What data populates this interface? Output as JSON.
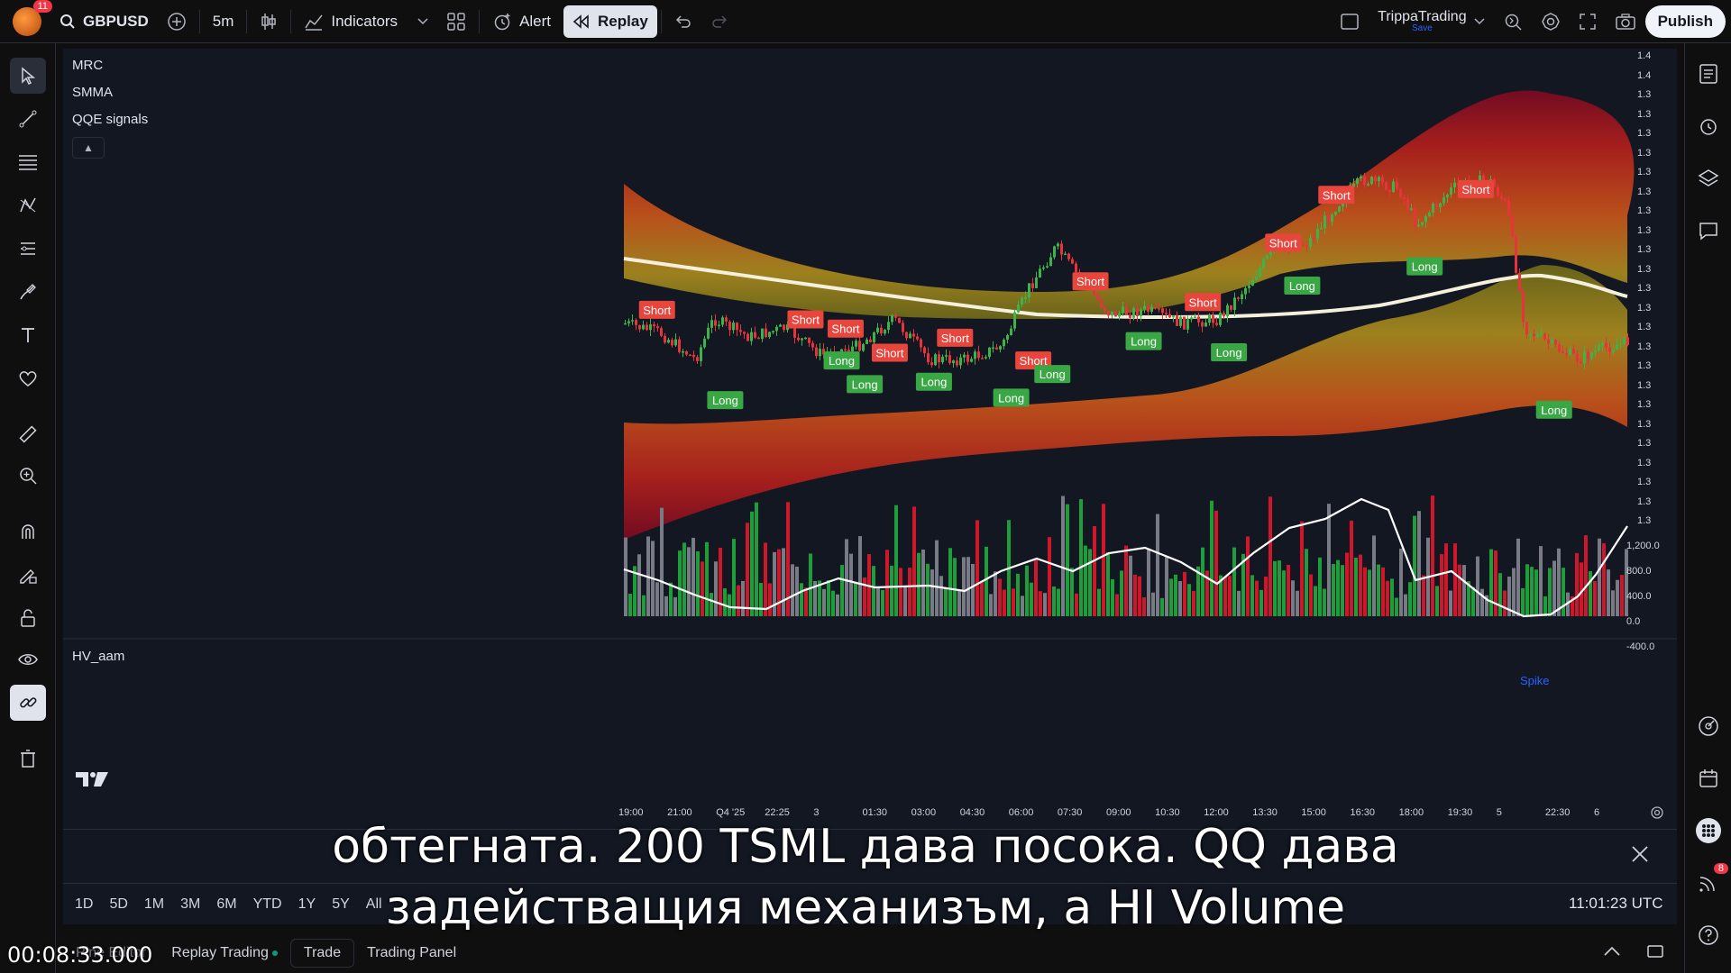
{
  "topbar": {
    "notification_count": "11",
    "symbol": "GBPUSD",
    "interval": "5m",
    "indicators_label": "Indicators",
    "alert_label": "Alert",
    "replay_label": "Replay",
    "user_name": "TrippaTrading",
    "user_status": "Save",
    "publish_label": "Publish"
  },
  "legends": {
    "mrc": "MRC",
    "smma": "SMMA",
    "qqe": "QQE signals",
    "volume": "HV_aam",
    "spike": "Spike"
  },
  "chart_data": {
    "type": "candlestick",
    "price_axis_labels": [
      "1.4",
      "1.4",
      "1.3",
      "1.3",
      "1.3",
      "1.3",
      "1.3",
      "1.3",
      "1.3",
      "1.3",
      "1.3",
      "1.3",
      "1.3",
      "1.3",
      "1.3",
      "1.3",
      "1.3",
      "1.3",
      "1.3",
      "1.3",
      "1.3",
      "1.3",
      "1.3",
      "1.3",
      "1.3"
    ],
    "volume_axis_labels": [
      "1,200.0",
      "800.0",
      "400.0",
      "0.0",
      "-400.0"
    ],
    "time_axis_labels": [
      "19:00",
      "21:00",
      "Q4 '25",
      "22:25",
      "3",
      "01:30",
      "03:00",
      "04:30",
      "06:00",
      "07:30",
      "09:00",
      "10:30",
      "12:00",
      "13:30",
      "15:00",
      "16:30",
      "18:00",
      "19:30",
      "5",
      "22:30",
      "6"
    ],
    "signals": [
      {
        "type": "Short",
        "x": 0.033,
        "y": 0.44
      },
      {
        "type": "Long",
        "x": 0.101,
        "y": 0.627
      },
      {
        "type": "Short",
        "x": 0.181,
        "y": 0.46
      },
      {
        "type": "Short",
        "x": 0.221,
        "y": 0.479
      },
      {
        "type": "Long",
        "x": 0.217,
        "y": 0.545
      },
      {
        "type": "Short",
        "x": 0.265,
        "y": 0.529
      },
      {
        "type": "Long",
        "x": 0.24,
        "y": 0.594
      },
      {
        "type": "Short",
        "x": 0.33,
        "y": 0.498
      },
      {
        "type": "Long",
        "x": 0.309,
        "y": 0.589
      },
      {
        "type": "Short",
        "x": 0.408,
        "y": 0.545
      },
      {
        "type": "Long",
        "x": 0.386,
        "y": 0.622
      },
      {
        "type": "Long",
        "x": 0.427,
        "y": 0.573
      },
      {
        "type": "Short",
        "x": 0.465,
        "y": 0.381
      },
      {
        "type": "Long",
        "x": 0.518,
        "y": 0.505
      },
      {
        "type": "Short",
        "x": 0.577,
        "y": 0.424
      },
      {
        "type": "Long",
        "x": 0.603,
        "y": 0.528
      },
      {
        "type": "Short",
        "x": 0.657,
        "y": 0.301
      },
      {
        "type": "Long",
        "x": 0.676,
        "y": 0.39
      },
      {
        "type": "Short",
        "x": 0.71,
        "y": 0.202
      },
      {
        "type": "Long",
        "x": 0.798,
        "y": 0.35
      },
      {
        "type": "Short",
        "x": 0.849,
        "y": 0.19
      },
      {
        "type": "Long",
        "x": 0.927,
        "y": 0.647
      }
    ]
  },
  "range_buttons": [
    "1D",
    "5D",
    "1M",
    "3M",
    "6M",
    "YTD",
    "1Y",
    "5Y",
    "All"
  ],
  "clock": "11:01:23 UTC",
  "bottom_tabs": {
    "pine": "Pine Editor",
    "replay": "Replay Trading",
    "trade": "Trade",
    "panel": "Trading Panel"
  },
  "right_badge": "8",
  "subtitle": {
    "line1": "обтегната. 200 TSML дава посока. QQ дава",
    "line2": "задействащия механизъм, а HI Volume"
  },
  "timecode": "00:08:33.000"
}
